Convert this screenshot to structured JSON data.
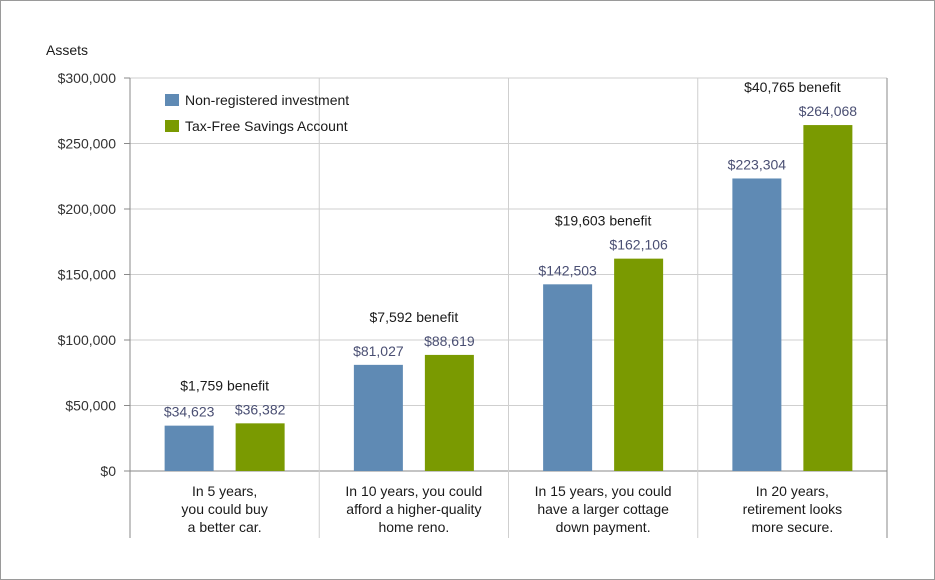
{
  "chart_data": {
    "type": "bar",
    "ylabel": "Assets",
    "ylim": [
      0,
      300000
    ],
    "yticks": [
      0,
      50000,
      100000,
      150000,
      200000,
      250000,
      300000
    ],
    "ytick_labels": [
      "$0",
      "$50,000",
      "$100,000",
      "$150,000",
      "$200,000",
      "$250,000",
      "$300,000"
    ],
    "grid": true,
    "legend": "top-left",
    "categories": [
      [
        "In 5 years,",
        "you could buy",
        "a better car."
      ],
      [
        "In 10 years, you could",
        "afford a higher-quality",
        "home reno."
      ],
      [
        "In 15 years, you could",
        "have a larger cottage",
        "down payment."
      ],
      [
        "In 20 years,",
        "retirement looks",
        "more secure."
      ]
    ],
    "series": [
      {
        "name": "Non-registered investment",
        "color": "#5f8ab4",
        "values": [
          34623,
          81027,
          142503,
          223304
        ],
        "labels": [
          "$34,623",
          "$81,027",
          "$142,503",
          "$223,304"
        ]
      },
      {
        "name": "Tax-Free Savings Account",
        "color": "#7a9a01",
        "values": [
          36382,
          88619,
          162106,
          264068
        ],
        "labels": [
          "$36,382",
          "$88,619",
          "$162,106",
          "$264,068"
        ]
      }
    ],
    "annotations": [
      "$1,759 benefit",
      "$7,592 benefit",
      "$19,603 benefit",
      "$40,765 benefit"
    ]
  }
}
